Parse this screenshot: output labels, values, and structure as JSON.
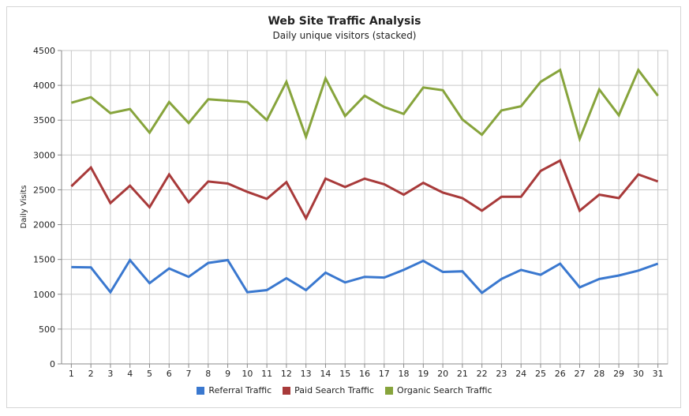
{
  "chart_data": {
    "type": "line",
    "title": "Web Site Traffic Analysis",
    "subtitle": "Daily unique visitors (stacked)",
    "xlabel": "",
    "ylabel": "Daily Visits",
    "ylim": [
      0,
      4500
    ],
    "yticks": [
      "0",
      "500",
      "1000",
      "1500",
      "2000",
      "2500",
      "3000",
      "3500",
      "4000",
      "4500"
    ],
    "grid": true,
    "legend_position": "bottom",
    "x": [
      1,
      2,
      3,
      4,
      5,
      6,
      7,
      8,
      9,
      10,
      11,
      12,
      13,
      14,
      15,
      16,
      17,
      18,
      19,
      20,
      21,
      22,
      23,
      24,
      25,
      26,
      27,
      28,
      29,
      30,
      31
    ],
    "series": [
      {
        "name": "Referral Traffic",
        "color": "#3a78cf",
        "values": [
          1390,
          1385,
          1030,
          1490,
          1160,
          1370,
          1250,
          1450,
          1490,
          1030,
          1060,
          1230,
          1060,
          1310,
          1170,
          1250,
          1240,
          1350,
          1480,
          1320,
          1330,
          1020,
          1220,
          1350,
          1280,
          1440,
          1100,
          1220,
          1270,
          1340,
          1440
        ]
      },
      {
        "name": "Paid Search Traffic",
        "color": "#a83a3a",
        "values": [
          2550,
          2820,
          2310,
          2560,
          2250,
          2720,
          2320,
          2620,
          2590,
          2470,
          2370,
          2610,
          2090,
          2660,
          2540,
          2660,
          2580,
          2430,
          2600,
          2460,
          2380,
          2200,
          2400,
          2400,
          2770,
          2920,
          2200,
          2430,
          2380,
          2720,
          2620
        ]
      },
      {
        "name": "Organic Search Traffic",
        "color": "#87a43c",
        "values": [
          3750,
          3830,
          3600,
          3660,
          3320,
          3760,
          3460,
          3800,
          3780,
          3760,
          3500,
          4050,
          3260,
          4100,
          3560,
          3850,
          3690,
          3590,
          3970,
          3930,
          3510,
          3290,
          3640,
          3700,
          4050,
          4220,
          3230,
          3940,
          3570,
          4220,
          3850
        ]
      }
    ]
  }
}
